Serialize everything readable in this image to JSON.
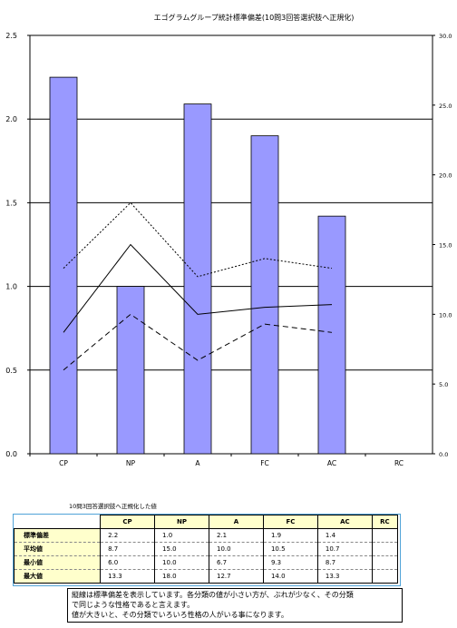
{
  "chart_data": {
    "type": "bar",
    "title": "エゴグラムグループ統計標準偏差(10問3回答選択肢へ正規化)",
    "categories": [
      "CP",
      "NP",
      "A",
      "FC",
      "AC",
      "RC"
    ],
    "left_axis": {
      "ylim": [
        0,
        2.5
      ],
      "ticks": [
        "0.0",
        "0.5",
        "1.0",
        "1.5",
        "2.0",
        "2.5"
      ]
    },
    "right_axis": {
      "ylim": [
        0,
        30
      ],
      "ticks": [
        "0.0",
        "5.0",
        "10.0",
        "15.0",
        "20.0",
        "25.0",
        "30.0"
      ]
    },
    "grid": true,
    "series": [
      {
        "type": "bar",
        "axis": "left",
        "values": [
          2.25,
          1.0,
          2.09,
          1.9,
          1.42,
          null
        ],
        "color": "#9999ff"
      },
      {
        "type": "line",
        "axis": "right",
        "style": "solid",
        "values": [
          8.7,
          15.0,
          10.0,
          10.5,
          10.7,
          null
        ]
      },
      {
        "type": "line",
        "axis": "right",
        "style": "dashed",
        "values": [
          6.0,
          10.0,
          6.7,
          9.3,
          8.7,
          null
        ]
      },
      {
        "type": "line",
        "axis": "right",
        "style": "dotted",
        "values": [
          13.3,
          18.0,
          12.7,
          14.0,
          13.3,
          null
        ]
      }
    ]
  },
  "table": {
    "title": "10問3回答選択肢へ正規化した値",
    "headers": [
      "CP",
      "NP",
      "A",
      "FC",
      "AC",
      "RC"
    ],
    "rows": [
      {
        "label": "標準偏差",
        "values": [
          "2.2",
          "1.0",
          "2.1",
          "1.9",
          "1.4",
          ""
        ]
      },
      {
        "label": "平均値",
        "values": [
          "8.7",
          "15.0",
          "10.0",
          "10.5",
          "10.7",
          ""
        ]
      },
      {
        "label": "最小値",
        "values": [
          "6.0",
          "10.0",
          "6.7",
          "9.3",
          "8.7",
          ""
        ]
      },
      {
        "label": "最大値",
        "values": [
          "13.3",
          "18.0",
          "12.7",
          "14.0",
          "13.3",
          ""
        ]
      }
    ]
  },
  "note": {
    "lines": [
      "縦線は標準偏差を表示しています。各分類の値が小さい方が、ぶれが少なく、その分類",
      "で同じような性格であると言えます。",
      "値が大きいと、その分類でいろいろ性格の人がいる事になります。"
    ]
  }
}
